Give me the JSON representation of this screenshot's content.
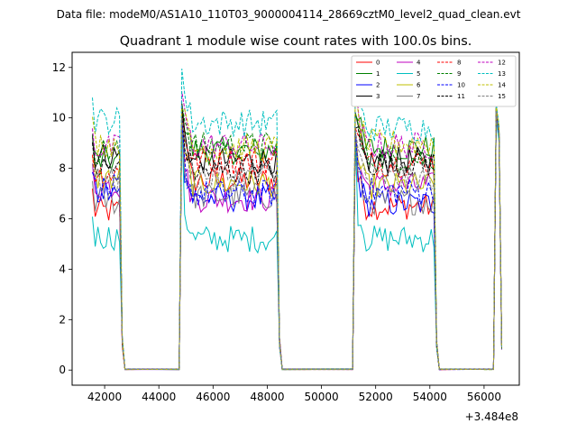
{
  "suptitle": "Data file: modeM0/AS1A10_110T03_9000004114_28669cztM0_level2_quad_clean.evt",
  "chart_data": {
    "type": "line",
    "title": "Quadrant 1 module wise count rates with 100.0s bins.",
    "xlabel": "",
    "ylabel": "",
    "x_offset_label": "+3.484e8",
    "xlim": [
      40800,
      57300
    ],
    "ylim": [
      -0.6,
      12.6
    ],
    "x_ticks": [
      42000,
      44000,
      46000,
      48000,
      50000,
      52000,
      54000,
      56000
    ],
    "x_tick_labels": [
      "42000",
      "44000",
      "46000",
      "48000",
      "50000",
      "52000",
      "54000",
      "56000"
    ],
    "y_ticks": [
      0,
      2,
      4,
      6,
      8,
      10,
      12
    ],
    "y_tick_labels": [
      "0",
      "2",
      "4",
      "6",
      "8",
      "10",
      "12"
    ],
    "grid": false,
    "legend_position": "top-right",
    "segments": [
      {
        "start": 41550,
        "end": 42650
      },
      {
        "start": 44850,
        "end": 48450
      },
      {
        "start": 51250,
        "end": 54250
      },
      {
        "start": 56450,
        "end": 56650
      }
    ],
    "x_step": 100,
    "series": [
      {
        "name": "0",
        "color": "#ff0000",
        "dash": "solid",
        "levels": [
          6.3,
          7.5,
          6.5,
          6.4
        ]
      },
      {
        "name": "1",
        "color": "#008000",
        "dash": "solid",
        "levels": [
          8.3,
          8.7,
          8.8,
          8.5
        ]
      },
      {
        "name": "2",
        "color": "#0000ff",
        "dash": "solid",
        "levels": [
          7.0,
          6.8,
          6.6,
          6.5
        ]
      },
      {
        "name": "3",
        "color": "#000000",
        "dash": "solid",
        "levels": [
          8.5,
          8.3,
          8.3,
          8.2
        ]
      },
      {
        "name": "4",
        "color": "#bf00bf",
        "dash": "solid",
        "levels": [
          7.3,
          6.8,
          7.3,
          7.2
        ]
      },
      {
        "name": "5",
        "color": "#00bfbf",
        "dash": "solid",
        "levels": [
          5.3,
          5.2,
          5.2,
          5.2
        ]
      },
      {
        "name": "6",
        "color": "#bfbf00",
        "dash": "solid",
        "levels": [
          7.6,
          7.4,
          7.3,
          7.2
        ]
      },
      {
        "name": "7",
        "color": "#808080",
        "dash": "solid",
        "levels": [
          6.7,
          6.9,
          6.7,
          6.6
        ]
      },
      {
        "name": "8",
        "color": "#ff0000",
        "dash": "dashed",
        "levels": [
          7.8,
          8.3,
          8.2,
          8.1
        ]
      },
      {
        "name": "9",
        "color": "#008000",
        "dash": "dashed",
        "levels": [
          8.7,
          8.9,
          8.4,
          8.3
        ]
      },
      {
        "name": "10",
        "color": "#0000ff",
        "dash": "dashed",
        "levels": [
          7.2,
          7.0,
          7.1,
          7.0
        ]
      },
      {
        "name": "11",
        "color": "#000000",
        "dash": "dashed",
        "levels": [
          8.0,
          7.9,
          8.2,
          8.1
        ]
      },
      {
        "name": "12",
        "color": "#bf00bf",
        "dash": "dashed",
        "levels": [
          8.8,
          8.9,
          8.9,
          8.8
        ]
      },
      {
        "name": "13",
        "color": "#00bfbf",
        "dash": "dashed",
        "levels": [
          9.9,
          9.8,
          9.6,
          9.5
        ]
      },
      {
        "name": "14",
        "color": "#bfbf00",
        "dash": "dashed",
        "levels": [
          9.0,
          8.8,
          9.0,
          8.9
        ]
      },
      {
        "name": "15",
        "color": "#808080",
        "dash": "dashed",
        "levels": [
          7.5,
          7.7,
          7.6,
          7.5
        ]
      }
    ]
  }
}
